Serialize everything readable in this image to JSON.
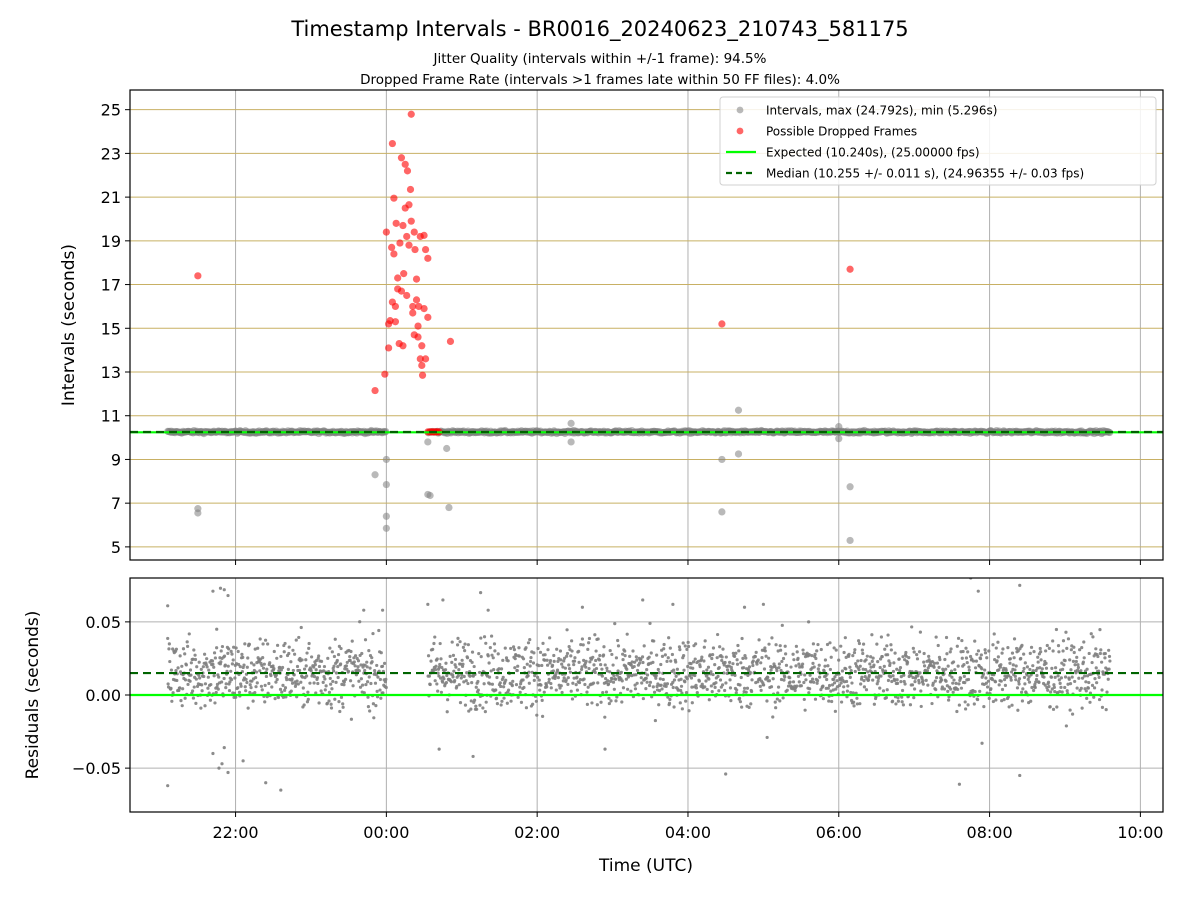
{
  "figure": {
    "title": "Timestamp Intervals - BR0016_20240623_210743_581175",
    "subtitle_1": "Jitter Quality (intervals within +/-1 frame): 94.5%",
    "subtitle_2": "Dropped Frame Rate (intervals >1 frames late within 50 FF files): 4.0%",
    "xlabel": "Time (UTC)"
  },
  "colors": {
    "interval_points": "#808080",
    "dropped_points": "#ff0000",
    "expected_line": "#00ff00",
    "median_line": "#006400",
    "hgrid_top": "#c8b064",
    "grid": "#b0b0b0"
  },
  "chart_data": [
    {
      "type": "scatter",
      "ylabel": "Intervals (seconds)",
      "ylim": [
        4.4,
        25.9
      ],
      "yticks": [
        5,
        7,
        9,
        11,
        13,
        15,
        17,
        19,
        21,
        23,
        25
      ],
      "ytick_labels": [
        "5",
        "7",
        "9",
        "11",
        "13",
        "15",
        "17",
        "19",
        "21",
        "23",
        "25"
      ],
      "xlim_hours": [
        20.6,
        34.3
      ],
      "xticks_hours": [
        22,
        24,
        26,
        28,
        30,
        32,
        34
      ],
      "xtick_labels": [],
      "legend_position": "top-right",
      "legend": [
        "Intervals, max (24.792s), min (5.296s)",
        "Possible Dropped Frames",
        "Expected (10.240s), (25.00000 fps)",
        "Median (10.255 +/- 0.011 s), (24.96355 +/- 0.03 fps)"
      ],
      "expected_value": 10.24,
      "median_value": 10.255,
      "series": [
        {
          "name": "Intervals, max (24.792s), min (5.296s)",
          "kind": "band",
          "x_range": [
            21.1,
            33.6
          ],
          "gap": [
            24.0,
            24.55
          ],
          "y_center": 10.255,
          "y_spread": 0.08,
          "outliers": [
            [
              21.5,
              6.75
            ],
            [
              21.5,
              6.55
            ],
            [
              23.85,
              8.3
            ],
            [
              24.0,
              9.0
            ],
            [
              24.0,
              7.85
            ],
            [
              24.0,
              6.4
            ],
            [
              24.0,
              5.85
            ],
            [
              24.55,
              9.8
            ],
            [
              24.55,
              7.4
            ],
            [
              24.58,
              7.35
            ],
            [
              24.8,
              9.5
            ],
            [
              24.83,
              6.8
            ],
            [
              26.45,
              10.65
            ],
            [
              26.45,
              9.8
            ],
            [
              28.45,
              9.0
            ],
            [
              28.45,
              6.6
            ],
            [
              28.67,
              11.25
            ],
            [
              28.67,
              9.25
            ],
            [
              30.0,
              10.5
            ],
            [
              30.0,
              9.95
            ],
            [
              30.15,
              7.75
            ],
            [
              30.15,
              5.296
            ]
          ]
        },
        {
          "name": "Possible Dropped Frames",
          "kind": "points",
          "points": [
            [
              21.5,
              17.4
            ],
            [
              23.85,
              12.15
            ],
            [
              23.98,
              12.9
            ],
            [
              24.0,
              19.4
            ],
            [
              24.03,
              14.1
            ],
            [
              24.03,
              15.2
            ],
            [
              24.05,
              15.35
            ],
            [
              24.07,
              18.7
            ],
            [
              24.08,
              23.45
            ],
            [
              24.08,
              16.2
            ],
            [
              24.1,
              20.95
            ],
            [
              24.1,
              18.4
            ],
            [
              24.12,
              16.0
            ],
            [
              24.12,
              15.3
            ],
            [
              24.13,
              19.8
            ],
            [
              24.15,
              17.3
            ],
            [
              24.15,
              16.8
            ],
            [
              24.17,
              14.3
            ],
            [
              24.18,
              18.9
            ],
            [
              24.2,
              22.8
            ],
            [
              24.2,
              16.7
            ],
            [
              24.22,
              19.7
            ],
            [
              24.22,
              14.2
            ],
            [
              24.23,
              17.5
            ],
            [
              24.25,
              22.5
            ],
            [
              24.25,
              20.5
            ],
            [
              24.27,
              19.2
            ],
            [
              24.27,
              16.5
            ],
            [
              24.28,
              22.2
            ],
            [
              24.3,
              20.65
            ],
            [
              24.3,
              18.8
            ],
            [
              24.32,
              21.35
            ],
            [
              24.33,
              24.79
            ],
            [
              24.33,
              19.9
            ],
            [
              24.35,
              16.0
            ],
            [
              24.35,
              15.7
            ],
            [
              24.37,
              19.4
            ],
            [
              24.37,
              14.7
            ],
            [
              24.38,
              18.6
            ],
            [
              24.4,
              17.25
            ],
            [
              24.4,
              16.3
            ],
            [
              24.42,
              15.1
            ],
            [
              24.42,
              14.6
            ],
            [
              24.43,
              16.0
            ],
            [
              24.45,
              19.2
            ],
            [
              24.45,
              13.6
            ],
            [
              24.47,
              14.2
            ],
            [
              24.47,
              13.3
            ],
            [
              24.48,
              12.85
            ],
            [
              24.5,
              19.25
            ],
            [
              24.5,
              15.9
            ],
            [
              24.52,
              18.6
            ],
            [
              24.52,
              13.6
            ],
            [
              24.55,
              18.2
            ],
            [
              24.55,
              15.5
            ],
            [
              24.85,
              14.4
            ],
            [
              28.45,
              15.2
            ],
            [
              30.15,
              17.7
            ],
            [
              24.55,
              10.26
            ],
            [
              24.58,
              10.26
            ],
            [
              24.6,
              10.26
            ],
            [
              24.62,
              10.26
            ],
            [
              24.64,
              10.26
            ],
            [
              24.66,
              10.26
            ],
            [
              24.68,
              10.26
            ],
            [
              24.7,
              10.26
            ]
          ]
        },
        {
          "name": "Expected (10.240s), (25.00000 fps)",
          "kind": "hline",
          "y": 10.24
        },
        {
          "name": "Median (10.255 +/- 0.011 s), (24.96355 +/- 0.03 fps)",
          "kind": "hline-dashed",
          "y": 10.255
        }
      ]
    },
    {
      "type": "scatter",
      "ylabel": "Residuals (seconds)",
      "ylim": [
        -0.08,
        0.08
      ],
      "yticks": [
        -0.05,
        0.0,
        0.05
      ],
      "ytick_labels": [
        "−0.05",
        "0.00",
        "0.05"
      ],
      "xlim_hours": [
        20.6,
        34.3
      ],
      "xticks_hours": [
        22,
        24,
        26,
        28,
        30,
        32,
        34
      ],
      "xtick_labels": [
        "22:00",
        "00:00",
        "02:00",
        "04:00",
        "06:00",
        "08:00",
        "10:00"
      ],
      "zero_line": 0.0,
      "median_residual": 0.015,
      "series": [
        {
          "name": "Residuals",
          "kind": "band",
          "x_range": [
            21.1,
            33.6
          ],
          "gap": [
            24.0,
            24.55
          ],
          "y_center": 0.015,
          "y_spread": 0.012,
          "outliers": [
            [
              21.1,
              0.061
            ],
            [
              21.1,
              -0.062
            ],
            [
              21.7,
              0.071
            ],
            [
              21.8,
              0.073
            ],
            [
              21.85,
              0.072
            ],
            [
              21.9,
              0.068
            ],
            [
              21.75,
              0.045
            ],
            [
              21.7,
              -0.04
            ],
            [
              21.85,
              -0.036
            ],
            [
              21.82,
              -0.047
            ],
            [
              21.78,
              -0.05
            ],
            [
              21.9,
              -0.053
            ],
            [
              22.1,
              -0.045
            ],
            [
              22.4,
              -0.06
            ],
            [
              22.6,
              -0.065
            ],
            [
              23.7,
              0.058
            ],
            [
              23.95,
              0.058
            ],
            [
              24.55,
              0.062
            ],
            [
              24.7,
              -0.037
            ],
            [
              24.75,
              0.065
            ],
            [
              25.25,
              0.07
            ],
            [
              25.15,
              -0.042
            ],
            [
              25.35,
              0.058
            ],
            [
              26.6,
              0.06
            ],
            [
              26.9,
              -0.037
            ],
            [
              27.4,
              0.065
            ],
            [
              27.8,
              0.062
            ],
            [
              28.5,
              -0.054
            ],
            [
              28.75,
              0.06
            ],
            [
              29.0,
              0.062
            ],
            [
              29.05,
              -0.029
            ],
            [
              29.6,
              0.05
            ],
            [
              31.6,
              -0.061
            ],
            [
              31.75,
              0.08
            ],
            [
              31.85,
              0.071
            ],
            [
              31.9,
              -0.033
            ],
            [
              32.4,
              0.075
            ],
            [
              32.4,
              -0.055
            ]
          ]
        }
      ]
    }
  ]
}
